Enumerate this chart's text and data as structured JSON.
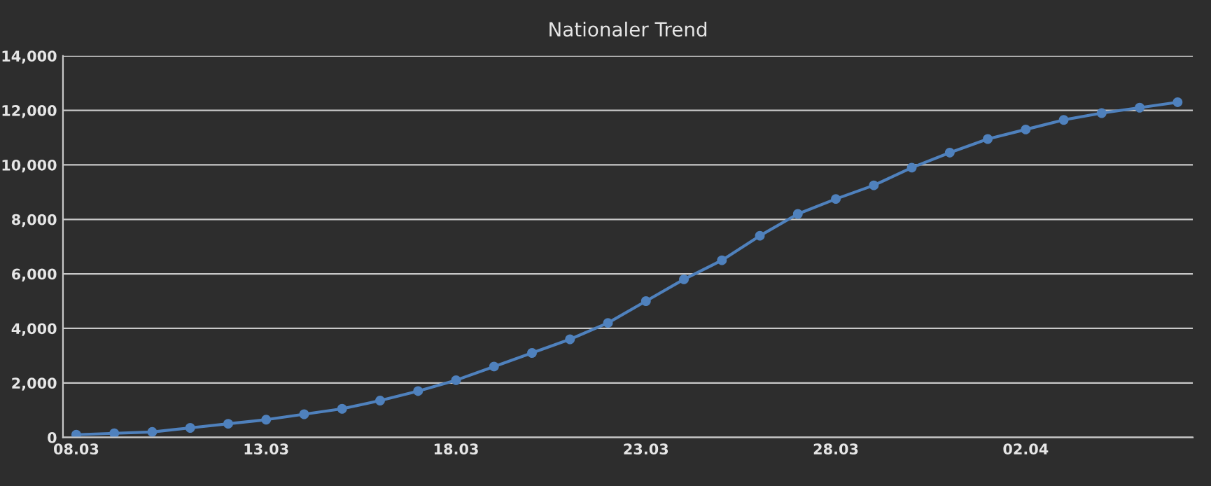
{
  "chart_data": {
    "type": "line",
    "title": "Nationaler Trend",
    "categories": [
      "08.03",
      null,
      null,
      null,
      null,
      "13.03",
      null,
      null,
      null,
      null,
      "18.03",
      null,
      null,
      null,
      null,
      "23.03",
      null,
      null,
      null,
      null,
      "28.03",
      null,
      null,
      null,
      null,
      "02.04",
      null,
      null,
      null,
      null
    ],
    "series": [
      {
        "color": "#4f81bd",
        "values": [
          100,
          150,
          200,
          350,
          500,
          650,
          850,
          1050,
          1350,
          1700,
          2100,
          2600,
          3100,
          3600,
          4200,
          5000,
          5800,
          6500,
          7400,
          8200,
          8750,
          9250,
          9900,
          10450,
          10950,
          11300,
          11650,
          11900,
          12100,
          12300
        ]
      }
    ],
    "ylim": [
      0,
      14000
    ],
    "yticks": [
      {
        "value": 0,
        "label": "0"
      },
      {
        "value": 2000,
        "label": "2,000"
      },
      {
        "value": 4000,
        "label": "4,000"
      },
      {
        "value": 6000,
        "label": "6,000"
      },
      {
        "value": 8000,
        "label": "8,000"
      },
      {
        "value": 10000,
        "label": "10,000"
      },
      {
        "value": 12000,
        "label": "12,000"
      },
      {
        "value": 14000,
        "label": "14,000"
      }
    ],
    "grid": "y",
    "marker": "circle",
    "line_style": "solid",
    "legend": false
  }
}
